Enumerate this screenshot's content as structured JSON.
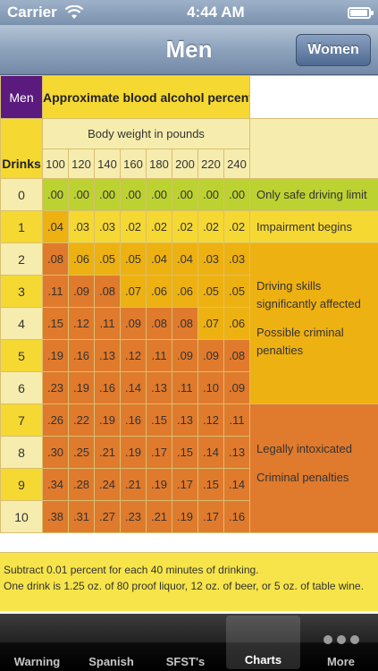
{
  "status_bar": {
    "carrier": "Carrier",
    "time": "4:44 AM",
    "battery_level": 0.95
  },
  "nav": {
    "title": "Men",
    "right_button": "Women"
  },
  "table": {
    "corner_label": "Men",
    "header": "Approximate blood alcohol percentage",
    "weight_caption": "Body weight in pounds",
    "drinks_label": "Drinks",
    "weights": [
      "100",
      "120",
      "140",
      "160",
      "180",
      "200",
      "220",
      "240"
    ],
    "rows": [
      {
        "drinks": "0",
        "values": [
          ".00",
          ".00",
          ".00",
          ".00",
          ".00",
          ".00",
          ".00",
          ".00"
        ]
      },
      {
        "drinks": "1",
        "values": [
          ".04",
          ".03",
          ".03",
          ".02",
          ".02",
          ".02",
          ".02",
          ".02"
        ]
      },
      {
        "drinks": "2",
        "values": [
          ".08",
          ".06",
          ".05",
          ".05",
          ".04",
          ".04",
          ".03",
          ".03"
        ]
      },
      {
        "drinks": "3",
        "values": [
          ".11",
          ".09",
          ".08",
          ".07",
          ".06",
          ".06",
          ".05",
          ".05"
        ]
      },
      {
        "drinks": "4",
        "values": [
          ".15",
          ".12",
          ".11",
          ".09",
          ".08",
          ".08",
          ".07",
          ".06"
        ]
      },
      {
        "drinks": "5",
        "values": [
          ".19",
          ".16",
          ".13",
          ".12",
          ".11",
          ".09",
          ".09",
          ".08"
        ]
      },
      {
        "drinks": "6",
        "values": [
          ".23",
          ".19",
          ".16",
          ".14",
          ".13",
          ".11",
          ".10",
          ".09"
        ]
      },
      {
        "drinks": "7",
        "values": [
          ".26",
          ".22",
          ".19",
          ".16",
          ".15",
          ".13",
          ".12",
          ".11"
        ]
      },
      {
        "drinks": "8",
        "values": [
          ".30",
          ".25",
          ".21",
          ".19",
          ".17",
          ".15",
          ".14",
          ".13"
        ]
      },
      {
        "drinks": "9",
        "values": [
          ".34",
          ".28",
          ".24",
          ".21",
          ".19",
          ".17",
          ".15",
          ".14"
        ]
      },
      {
        "drinks": "10",
        "values": [
          ".38",
          ".31",
          ".27",
          ".23",
          ".21",
          ".19",
          ".17",
          ".16"
        ]
      }
    ],
    "descriptions": {
      "safe": "Only safe driving limit",
      "impairment": "Impairment begins",
      "skills": "Driving skills significantly affected",
      "criminal_possible": "Possible criminal penalties",
      "intoxicated": "Legally intoxicated",
      "criminal": "Criminal penalties"
    }
  },
  "notes": {
    "line1": "Subtract 0.01 percent for each 40 minutes of drinking.",
    "line2": "One drink is 1.25 oz. of 80 proof liquor, 12 oz. of beer, or 5 oz. of table wine."
  },
  "tabs": [
    {
      "label": "Warning",
      "icon": "warning-icon",
      "active": false
    },
    {
      "label": "Spanish",
      "icon": "spanish-icon",
      "active": false
    },
    {
      "label": "SFST's",
      "icon": "sfst-icon",
      "active": false
    },
    {
      "label": "Charts",
      "icon": "charts-icon",
      "active": true
    },
    {
      "label": "More",
      "icon": "more-icon",
      "active": false
    }
  ],
  "colors": {
    "green": "#bcd230",
    "yellow": "#f6d832",
    "gold": "#eeb112",
    "orange": "#e07a2c",
    "purple": "#5a1a7e"
  }
}
